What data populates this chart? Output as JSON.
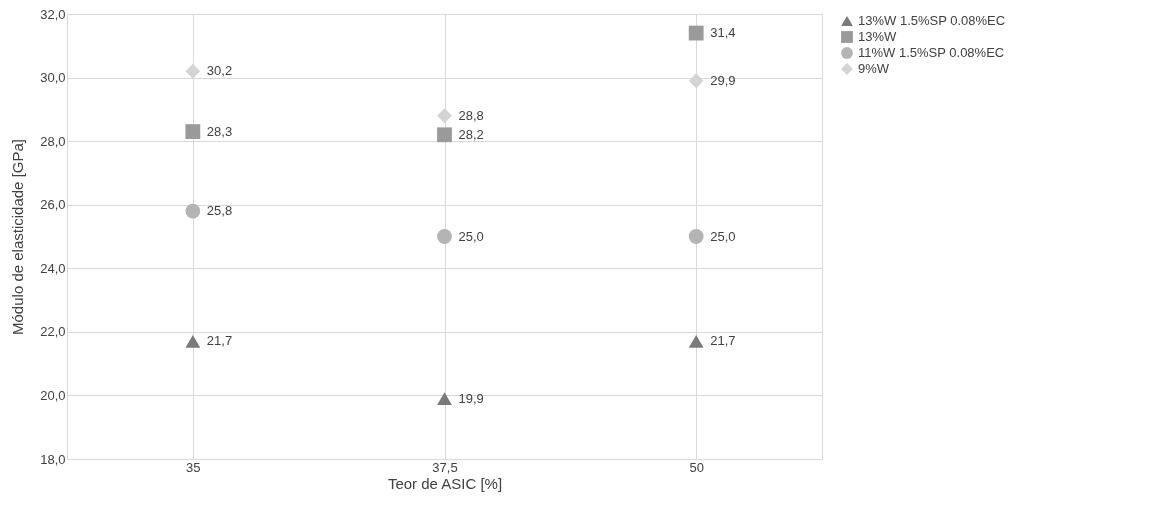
{
  "chart_data": {
    "type": "scatter",
    "xlabel": "Teor de ASIC [%]",
    "ylabel": "Módulo de elasticidade [GPa]",
    "categories": [
      "35",
      "37,5",
      "50"
    ],
    "series": [
      {
        "name": "13%W 1.5%SP 0.08%EC",
        "color": "#7a7a7a",
        "marker": "triangle",
        "values": [
          21.7,
          19.9,
          21.7
        ],
        "value_labels": [
          "21,7",
          "19,9",
          "21,7"
        ]
      },
      {
        "name": "13%W",
        "color": "#9a9a9a",
        "marker": "square",
        "values": [
          28.3,
          28.2,
          31.4
        ],
        "value_labels": [
          "28,3",
          "28,2",
          "31,4"
        ]
      },
      {
        "name": "11%W 1.5%SP 0.08%EC",
        "color": "#b4b4b4",
        "marker": "circle",
        "values": [
          25.8,
          25.0,
          25.0
        ],
        "value_labels": [
          "25,8",
          "25,0",
          "25,0"
        ]
      },
      {
        "name": "9%W",
        "color": "#d4d4d4",
        "marker": "diamond",
        "values": [
          30.2,
          28.8,
          29.9
        ],
        "value_labels": [
          "30,2",
          "28,8",
          "29,9"
        ]
      }
    ],
    "ylim": [
      18,
      32
    ],
    "yticks": [
      {
        "value": 18,
        "label": "18,0"
      },
      {
        "value": 20,
        "label": "20,0"
      },
      {
        "value": 22,
        "label": "22,0"
      },
      {
        "value": 24,
        "label": "24,0"
      },
      {
        "value": 26,
        "label": "26,0"
      },
      {
        "value": 28,
        "label": "28,0"
      },
      {
        "value": 30,
        "label": "30,0"
      },
      {
        "value": 32,
        "label": "32,0"
      }
    ],
    "grid": true,
    "legend": "right"
  }
}
